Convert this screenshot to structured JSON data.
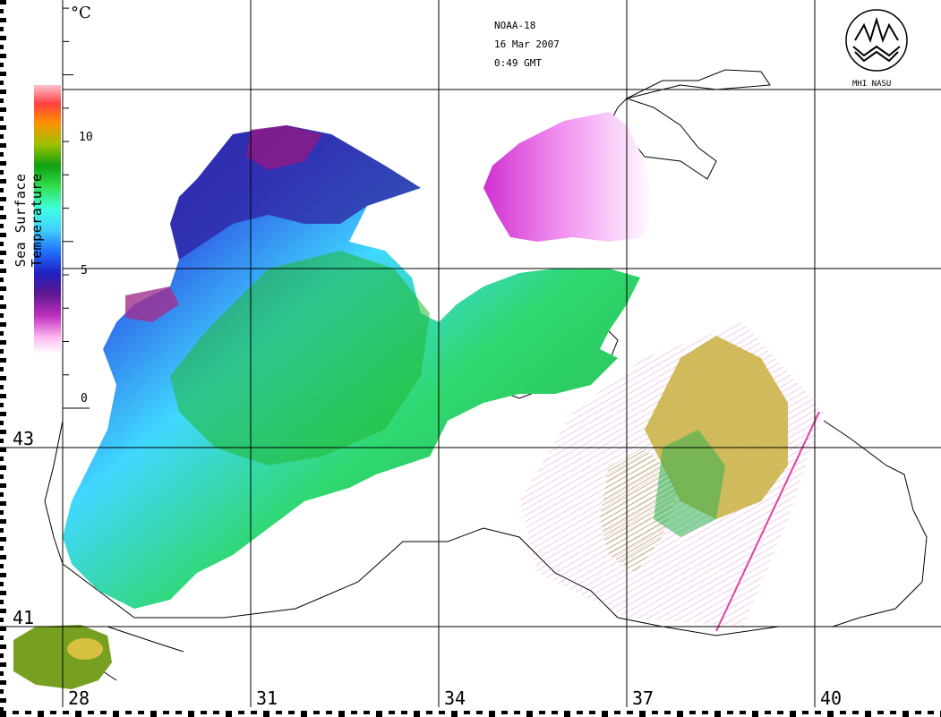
{
  "header": {
    "satellite": "NOAA-18",
    "date": "16 Mar 2007",
    "time": "0:49 GMT"
  },
  "logo": {
    "text": "MHI NASU",
    "icon": "mhi-emblem-icon"
  },
  "colorbar": {
    "title": "Sea Surface Temperature",
    "unit": "°C",
    "ticks": [
      "10",
      "5",
      "0"
    ],
    "min": 0,
    "max": 12,
    "stops": [
      "#ffd8f4",
      "#ff80ff",
      "#a020a0",
      "#2020c0",
      "#2060ff",
      "#40c0ff",
      "#40ffff",
      "#40ff80",
      "#20c020",
      "#009000",
      "#c0c000",
      "#ffa000",
      "#ff5050",
      "#ffa0c0"
    ]
  },
  "axes": {
    "lat_labels": [
      "43",
      "41"
    ],
    "lon_labels": [
      "28",
      "31",
      "34",
      "37",
      "40"
    ]
  },
  "colors": {
    "cold": "#a020a0",
    "cool": "#2030c0",
    "mid": "#40e0ff",
    "warm": "#20c020",
    "hot": "#c8b040"
  }
}
